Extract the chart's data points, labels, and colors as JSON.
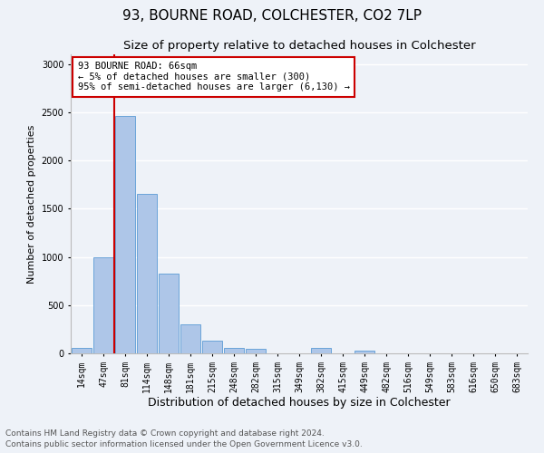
{
  "title_line1": "93, BOURNE ROAD, COLCHESTER, CO2 7LP",
  "title_line2": "Size of property relative to detached houses in Colchester",
  "xlabel": "Distribution of detached houses by size in Colchester",
  "ylabel": "Number of detached properties",
  "categories": [
    "14sqm",
    "47sqm",
    "81sqm",
    "114sqm",
    "148sqm",
    "181sqm",
    "215sqm",
    "248sqm",
    "282sqm",
    "315sqm",
    "349sqm",
    "382sqm",
    "415sqm",
    "449sqm",
    "482sqm",
    "516sqm",
    "549sqm",
    "583sqm",
    "616sqm",
    "650sqm",
    "683sqm"
  ],
  "values": [
    60,
    1000,
    2460,
    1650,
    830,
    305,
    130,
    55,
    45,
    0,
    0,
    55,
    0,
    30,
    0,
    0,
    0,
    0,
    0,
    0,
    0
  ],
  "bar_color": "#aec6e8",
  "bar_edge_color": "#5b9bd5",
  "ylim": [
    0,
    3100
  ],
  "yticks": [
    0,
    500,
    1000,
    1500,
    2000,
    2500,
    3000
  ],
  "vline_color": "#cc0000",
  "annotation_text": "93 BOURNE ROAD: 66sqm\n← 5% of detached houses are smaller (300)\n95% of semi-detached houses are larger (6,130) →",
  "annotation_box_color": "#cc0000",
  "footer_line1": "Contains HM Land Registry data © Crown copyright and database right 2024.",
  "footer_line2": "Contains public sector information licensed under the Open Government Licence v3.0.",
  "bg_color": "#eef2f8",
  "grid_color": "#ffffff",
  "title1_fontsize": 11,
  "title2_fontsize": 9.5,
  "xlabel_fontsize": 9,
  "ylabel_fontsize": 8,
  "tick_fontsize": 7,
  "footer_fontsize": 6.5,
  "annotation_fontsize": 7.5
}
